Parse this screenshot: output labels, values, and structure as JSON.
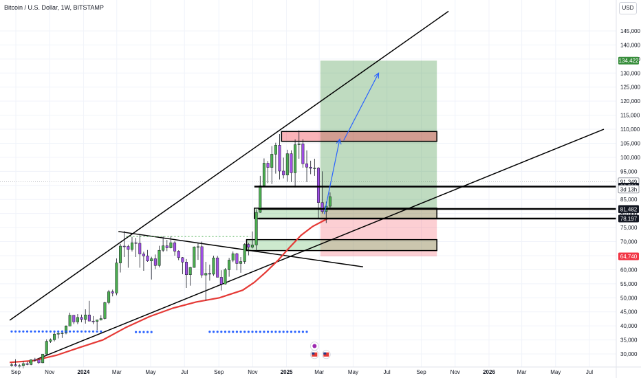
{
  "header": {
    "title": "Bitcoin / U.S. Dollar, 1W, BITSTAMP"
  },
  "currency_button": "USD",
  "chart_data": {
    "type": "candlestick",
    "symbol": "Bitcoin / U.S. Dollar",
    "interval": "1W",
    "exchange": "BITSTAMP",
    "currency": "USD",
    "ylim": [
      27000,
      150000
    ],
    "y_ticks": [
      30000,
      35000,
      40000,
      45000,
      50000,
      55000,
      60000,
      65000,
      70000,
      75000,
      80000,
      85000,
      90000,
      95000,
      100000,
      105000,
      110000,
      115000,
      120000,
      125000,
      130000,
      135000,
      140000,
      145000
    ],
    "y_tick_labels": [
      "30,000",
      "35,000",
      "40,000",
      "45,000",
      "50,000",
      "55,000",
      "60,000",
      "65,000",
      "70,000",
      "75,000",
      "80,000",
      "85,000",
      "90,000",
      "95,000",
      "100,000",
      "105,000",
      "110,000",
      "115,000",
      "120,000",
      "125,000",
      "130,000",
      "135,000",
      "140,000",
      "145,000"
    ],
    "x_ticks": [
      {
        "label": "Sep",
        "date": "2023-09-01",
        "bold": false
      },
      {
        "label": "Nov",
        "date": "2023-11-01",
        "bold": false
      },
      {
        "label": "2024",
        "date": "2024-01-01",
        "bold": true
      },
      {
        "label": "Mar",
        "date": "2024-03-01",
        "bold": false
      },
      {
        "label": "May",
        "date": "2024-05-01",
        "bold": false
      },
      {
        "label": "Jul",
        "date": "2024-07-01",
        "bold": false
      },
      {
        "label": "Sep",
        "date": "2024-09-01",
        "bold": false
      },
      {
        "label": "Nov",
        "date": "2024-11-01",
        "bold": false
      },
      {
        "label": "2025",
        "date": "2025-01-01",
        "bold": true
      },
      {
        "label": "Mar",
        "date": "2025-03-01",
        "bold": false
      },
      {
        "label": "May",
        "date": "2025-05-01",
        "bold": false
      },
      {
        "label": "Jul",
        "date": "2025-07-01",
        "bold": false
      },
      {
        "label": "Sep",
        "date": "2025-09-01",
        "bold": false
      },
      {
        "label": "Nov",
        "date": "2025-11-01",
        "bold": false
      },
      {
        "label": "2026",
        "date": "2026-01-01",
        "bold": true
      },
      {
        "label": "Mar",
        "date": "2026-03-01",
        "bold": false
      },
      {
        "label": "May",
        "date": "2026-05-01",
        "bold": false
      },
      {
        "label": "Jul",
        "date": "2026-07-01",
        "bold": false
      }
    ],
    "price_labels": [
      {
        "value": 134422,
        "text": "134,422",
        "color": "#388e3c"
      },
      {
        "value": 91349,
        "text": "91,349",
        "color": "#9598a1"
      },
      {
        "value": 89590,
        "text": "89,590",
        "color": "#131722"
      },
      {
        "value": 81627,
        "text": "81,627",
        "color": "#131722"
      },
      {
        "value": 81482,
        "text": "81,482",
        "color": "#131722"
      },
      {
        "value": 78197,
        "text": "78,197",
        "color": "#131722"
      },
      {
        "value": 64740,
        "text": "64,740",
        "color": "#f23645"
      }
    ],
    "countdown": "3d 13h",
    "candles": [
      [
        "2023-08-21",
        26050,
        26800,
        25400,
        26150
      ],
      [
        "2023-08-28",
        26150,
        28100,
        25500,
        25800
      ],
      [
        "2023-09-04",
        25800,
        26400,
        25000,
        25850
      ],
      [
        "2023-09-11",
        25850,
        27400,
        24900,
        26550
      ],
      [
        "2023-09-18",
        26550,
        27200,
        26000,
        26250
      ],
      [
        "2023-09-25",
        26250,
        28000,
        26000,
        27950
      ],
      [
        "2023-10-02",
        27950,
        28600,
        27200,
        27900
      ],
      [
        "2023-10-09",
        27900,
        28000,
        26500,
        26850
      ],
      [
        "2023-10-16",
        26850,
        30000,
        26700,
        29950
      ],
      [
        "2023-10-23",
        29950,
        35200,
        29800,
        34500
      ],
      [
        "2023-10-30",
        34500,
        35500,
        33900,
        35050
      ],
      [
        "2023-11-06",
        35050,
        38000,
        34500,
        37050
      ],
      [
        "2023-11-13",
        37050,
        37900,
        35500,
        37350
      ],
      [
        "2023-11-20",
        37350,
        38400,
        35700,
        37450
      ],
      [
        "2023-11-27",
        37450,
        40200,
        37000,
        39950
      ],
      [
        "2023-12-04",
        39950,
        44700,
        39900,
        43800
      ],
      [
        "2023-12-11",
        43800,
        43500,
        40600,
        41400
      ],
      [
        "2023-12-18",
        41400,
        44200,
        40600,
        43000
      ],
      [
        "2023-12-25",
        43000,
        44000,
        41300,
        42300
      ],
      [
        "2024-01-01",
        42300,
        45900,
        40800,
        43900
      ],
      [
        "2024-01-08",
        43900,
        48900,
        41800,
        41700
      ],
      [
        "2024-01-15",
        41700,
        43500,
        40600,
        41600
      ],
      [
        "2024-01-22",
        41600,
        42200,
        38500,
        42100
      ],
      [
        "2024-01-29",
        42100,
        43800,
        41900,
        42600
      ],
      [
        "2024-02-05",
        42600,
        48600,
        42300,
        48300
      ],
      [
        "2024-02-12",
        48300,
        52800,
        47700,
        52150
      ],
      [
        "2024-02-19",
        52150,
        52900,
        50500,
        51700
      ],
      [
        "2024-02-26",
        51700,
        64000,
        50900,
        62400
      ],
      [
        "2024-03-04",
        62400,
        69200,
        59000,
        68400
      ],
      [
        "2024-03-11",
        68400,
        73800,
        64500,
        68300
      ],
      [
        "2024-03-18",
        68300,
        68900,
        60700,
        67200
      ],
      [
        "2024-03-25",
        67200,
        71700,
        66500,
        69600
      ],
      [
        "2024-04-01",
        69600,
        71300,
        64500,
        69400
      ],
      [
        "2024-04-08",
        69400,
        72700,
        60700,
        65600
      ],
      [
        "2024-04-15",
        65600,
        66400,
        59600,
        64900
      ],
      [
        "2024-04-22",
        64900,
        67000,
        62800,
        63100
      ],
      [
        "2024-04-29",
        63100,
        64600,
        56500,
        63900
      ],
      [
        "2024-05-06",
        63900,
        65400,
        60200,
        61500
      ],
      [
        "2024-05-13",
        61500,
        68500,
        60800,
        66900
      ],
      [
        "2024-05-20",
        66900,
        71900,
        66300,
        68500
      ],
      [
        "2024-05-27",
        68500,
        70600,
        66600,
        67800
      ],
      [
        "2024-06-03",
        67800,
        71900,
        67600,
        69600
      ],
      [
        "2024-06-10",
        69600,
        70100,
        65000,
        66600
      ],
      [
        "2024-06-17",
        66600,
        66900,
        63400,
        64300
      ],
      [
        "2024-06-24",
        64300,
        64500,
        58400,
        62700
      ],
      [
        "2024-07-01",
        62700,
        63800,
        53500,
        58200
      ],
      [
        "2024-07-08",
        58200,
        61000,
        54300,
        60800
      ],
      [
        "2024-07-15",
        60800,
        68300,
        60700,
        68100
      ],
      [
        "2024-07-22",
        68100,
        69400,
        63500,
        68200
      ],
      [
        "2024-07-29",
        68200,
        70000,
        57100,
        58100
      ],
      [
        "2024-08-05",
        58100,
        62800,
        49000,
        58700
      ],
      [
        "2024-08-12",
        58700,
        61800,
        56100,
        58400
      ],
      [
        "2024-08-19",
        58400,
        65000,
        57800,
        64200
      ],
      [
        "2024-08-26",
        64200,
        64900,
        57300,
        57300
      ],
      [
        "2024-09-02",
        57300,
        59800,
        52600,
        54900
      ],
      [
        "2024-09-09",
        54900,
        60600,
        54700,
        60000
      ],
      [
        "2024-09-16",
        60000,
        64200,
        57500,
        63400
      ],
      [
        "2024-09-23",
        63400,
        66500,
        62700,
        65700
      ],
      [
        "2024-09-30",
        65700,
        66000,
        59800,
        62200
      ],
      [
        "2024-10-07",
        62200,
        64500,
        58900,
        62900
      ],
      [
        "2024-10-14",
        62900,
        69400,
        62100,
        69000
      ],
      [
        "2024-10-21",
        69000,
        69500,
        65100,
        68000
      ],
      [
        "2024-10-28",
        68000,
        73600,
        67600,
        68800
      ],
      [
        "2024-11-04",
        68800,
        81500,
        66800,
        80400
      ],
      [
        "2024-11-11",
        80400,
        93400,
        80200,
        89900
      ],
      [
        "2024-11-18",
        89900,
        99600,
        89400,
        97900
      ],
      [
        "2024-11-25",
        97900,
        98700,
        90800,
        96400
      ],
      [
        "2024-12-02",
        96400,
        104000,
        90500,
        101100
      ],
      [
        "2024-12-09",
        101100,
        105200,
        94200,
        104300
      ],
      [
        "2024-12-16",
        104300,
        108300,
        92100,
        95100
      ],
      [
        "2024-12-23",
        95100,
        99900,
        92500,
        93700
      ],
      [
        "2024-12-30",
        93700,
        102700,
        91300,
        101300
      ],
      [
        "2025-01-06",
        101300,
        102500,
        91200,
        94500
      ],
      [
        "2025-01-13",
        94500,
        106400,
        89300,
        104500
      ],
      [
        "2025-01-20",
        104500,
        109600,
        99500,
        104800
      ],
      [
        "2025-01-27",
        104800,
        106500,
        96300,
        97700
      ],
      [
        "2025-02-03",
        97700,
        102500,
        91200,
        96500
      ],
      [
        "2025-02-10",
        96500,
        98800,
        94000,
        96100
      ],
      [
        "2025-02-17",
        96100,
        99500,
        93400,
        96200
      ],
      [
        "2025-02-24",
        96200,
        96500,
        78200,
        83900
      ],
      [
        "2025-03-03",
        83900,
        95000,
        80000,
        80700
      ],
      [
        "2025-03-10",
        80700,
        84200,
        76600,
        82600
      ],
      [
        "2025-03-17",
        82600,
        87500,
        82000,
        86000
      ]
    ],
    "ema": [
      [
        "2023-08-21",
        27000
      ],
      [
        "2023-10-02",
        27600
      ],
      [
        "2023-11-13",
        29500
      ],
      [
        "2023-12-25",
        32300
      ],
      [
        "2024-02-05",
        35000
      ],
      [
        "2024-03-18",
        39500
      ],
      [
        "2024-04-29",
        43300
      ],
      [
        "2024-06-10",
        46300
      ],
      [
        "2024-07-22",
        48500
      ],
      [
        "2024-09-02",
        50000
      ],
      [
        "2024-10-14",
        52700
      ],
      [
        "2024-11-04",
        55500
      ],
      [
        "2024-11-25",
        59200
      ],
      [
        "2024-12-16",
        63200
      ],
      [
        "2025-01-06",
        67800
      ],
      [
        "2025-01-27",
        72200
      ],
      [
        "2025-02-17",
        75400
      ],
      [
        "2025-03-17",
        78300
      ]
    ],
    "trendlines": [
      {
        "name": "upper-channel-line",
        "p1": [
          "2023-08-21",
          42000
        ],
        "p2": [
          "2025-10-20",
          152000
        ],
        "color": "#000000",
        "width": 1.5
      },
      {
        "name": "lower-support-line",
        "p1": [
          "2023-09-25",
          27000
        ],
        "p2": [
          "2026-07-27",
          110000
        ],
        "color": "#000000",
        "width": 1.5
      },
      {
        "name": "descending-resistance-line",
        "p1": [
          "2024-03-04",
          73600
        ],
        "p2": [
          "2025-05-19",
          61000
        ],
        "color": "#000000",
        "width": 1.5
      },
      {
        "name": "dotted-resistance",
        "p1": [
          "2024-03-18",
          71800
        ],
        "p2": [
          "2024-10-28",
          71800
        ],
        "color": "#4caf50",
        "width": 1,
        "dash": "2,3"
      }
    ],
    "zones": [
      {
        "name": "take-profit-zone",
        "d1": "2025-03-03",
        "d2": "2025-09-29",
        "p1": 81800,
        "p2": 134422,
        "fill": "rgba(56,142,60,0.32)",
        "stroke": "none"
      },
      {
        "name": "stop-loss-zone",
        "d1": "2025-03-03",
        "d2": "2025-09-29",
        "p1": 64740,
        "p2": 81800,
        "fill": "rgba(242,54,69,0.24)",
        "stroke": "none"
      },
      {
        "name": "supply-box",
        "d1": "2024-12-23",
        "d2": "2025-09-29",
        "p1": 105700,
        "p2": 109200,
        "fill": "rgba(242,54,69,0.38)",
        "stroke": "#000000"
      },
      {
        "name": "demand-box-upper",
        "d1": "2024-11-04",
        "d2": "2025-09-29",
        "p1": 78200,
        "p2": 81900,
        "fill": "rgba(76,175,80,0.28)",
        "stroke": "#000000"
      },
      {
        "name": "demand-box-lower",
        "d1": "2024-10-21",
        "d2": "2025-09-29",
        "p1": 66800,
        "p2": 70700,
        "fill": "rgba(76,175,80,0.28)",
        "stroke": "#000000"
      }
    ],
    "horizontal_lines": [
      {
        "name": "hline-89590",
        "value": 89590,
        "d1": "2024-11-04",
        "d2": "2026-10-01",
        "width": 2.5
      },
      {
        "name": "hline-81627",
        "value": 81627,
        "d1": "2024-11-11",
        "d2": "2026-10-01",
        "width": 2.5
      },
      {
        "name": "hline-78197",
        "value": 78197,
        "d1": "2024-11-11",
        "d2": "2026-10-01",
        "width": 2.5
      }
    ],
    "projection_arrows": [
      {
        "name": "projection-arrow-1",
        "from": [
          "2025-03-10",
          79800
        ],
        "to": [
          "2025-04-07",
          106500
        ]
      },
      {
        "name": "projection-arrow-2",
        "from": [
          "2025-04-14",
          106000
        ],
        "to": [
          "2025-06-16",
          130000
        ]
      }
    ],
    "bottom_markers": [
      {
        "name": "dot-row-left",
        "d1": "2023-08-21",
        "d2": "2024-02-05",
        "value": 38000
      },
      {
        "name": "dot-row-mid",
        "d1": "2024-04-01",
        "d2": "2024-05-06",
        "value": 37800
      },
      {
        "name": "dot-row-right",
        "d1": "2024-08-12",
        "d2": "2025-02-10",
        "value": 37900
      }
    ],
    "event_icons": [
      {
        "name": "us-flag-icon",
        "date": "2025-02-17",
        "value": 29800
      },
      {
        "name": "us-flag-icon",
        "date": "2025-03-10",
        "value": 29800
      },
      {
        "name": "economic-event-icon",
        "date": "2025-02-17",
        "value": 32800
      }
    ],
    "colors": {
      "up": "#4caf50",
      "down": "#a14ee6",
      "wick": "#131722",
      "ema": "#e53935",
      "arrow": "#2962ff"
    }
  }
}
